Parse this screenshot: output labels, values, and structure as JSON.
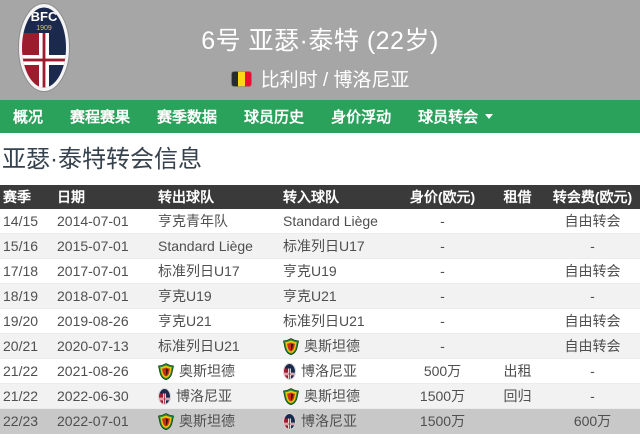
{
  "header": {
    "title": "6号 亚瑟·泰特 (22岁)",
    "nationality_club": "比利时 / 博洛尼亚",
    "flag": "belgium",
    "crest_initials": "BFC",
    "crest_year": "1909"
  },
  "nav": {
    "items": [
      {
        "id": "overview",
        "label": "概况"
      },
      {
        "id": "fixtures-results",
        "label": "赛程赛果"
      },
      {
        "id": "season-stats",
        "label": "赛季数据"
      },
      {
        "id": "player-history",
        "label": "球员历史"
      },
      {
        "id": "market-value",
        "label": "身价浮动"
      },
      {
        "id": "player-transfers",
        "label": "球员转会",
        "has_dropdown": true
      }
    ]
  },
  "section": {
    "title": "亚瑟·泰特转会信息"
  },
  "table": {
    "columns": [
      "赛季",
      "日期",
      "转出球队",
      "转入球队",
      "身价(欧元)",
      "租借",
      "转会费(欧元)"
    ],
    "rows": [
      {
        "season": "14/15",
        "date": "2014-07-01",
        "from": {
          "name": "亨克青年队"
        },
        "to": {
          "name": "Standard Liège"
        },
        "value": "-",
        "loan": "",
        "fee": "自由转会"
      },
      {
        "season": "15/16",
        "date": "2015-07-01",
        "from": {
          "name": "Standard Liège"
        },
        "to": {
          "name": "标准列日U17"
        },
        "value": "-",
        "loan": "",
        "fee": "-"
      },
      {
        "season": "17/18",
        "date": "2017-07-01",
        "from": {
          "name": "标准列日U17"
        },
        "to": {
          "name": "亨克U19"
        },
        "value": "-",
        "loan": "",
        "fee": "自由转会"
      },
      {
        "season": "18/19",
        "date": "2018-07-01",
        "from": {
          "name": "亨克U19"
        },
        "to": {
          "name": "亨克U21"
        },
        "value": "-",
        "loan": "",
        "fee": "-"
      },
      {
        "season": "19/20",
        "date": "2019-08-26",
        "from": {
          "name": "亨克U21"
        },
        "to": {
          "name": "标准列日U21"
        },
        "value": "-",
        "loan": "",
        "fee": "自由转会"
      },
      {
        "season": "20/21",
        "date": "2020-07-13",
        "from": {
          "name": "标准列日U21"
        },
        "to": {
          "name": "奥斯坦德",
          "logo": "oostende"
        },
        "value": "-",
        "loan": "",
        "fee": "自由转会"
      },
      {
        "season": "21/22",
        "date": "2021-08-26",
        "from": {
          "name": "奥斯坦德",
          "logo": "oostende"
        },
        "to": {
          "name": "博洛尼亚",
          "logo": "bologna"
        },
        "value": "500万",
        "loan": "出租",
        "fee": "-"
      },
      {
        "season": "21/22",
        "date": "2022-06-30",
        "from": {
          "name": "博洛尼亚",
          "logo": "bologna"
        },
        "to": {
          "name": "奥斯坦德",
          "logo": "oostende"
        },
        "value": "1500万",
        "loan": "回归",
        "fee": "-"
      },
      {
        "season": "22/23",
        "date": "2022-07-01",
        "from": {
          "name": "奥斯坦德",
          "logo": "oostende"
        },
        "to": {
          "name": "博洛尼亚",
          "logo": "bologna"
        },
        "value": "1500万",
        "loan": "",
        "fee": "600万",
        "highlight": true
      }
    ]
  },
  "colors": {
    "accent_green": "#2ba25b",
    "hero_gray": "#a6a6a6",
    "table_header_bg": "#3a3a3a",
    "row_alt": "#f2f2f2",
    "row_highlight": "#c8c8c8",
    "bologna_navy": "#1b2a4c",
    "bologna_red": "#9e1b2e",
    "oostende_green": "#1f8a34",
    "oostende_yellow": "#f2c500",
    "oostende_red": "#c62f1e",
    "flag_black": "#2b2b2b",
    "flag_yellow": "#f8d914",
    "flag_red": "#e8112d"
  }
}
